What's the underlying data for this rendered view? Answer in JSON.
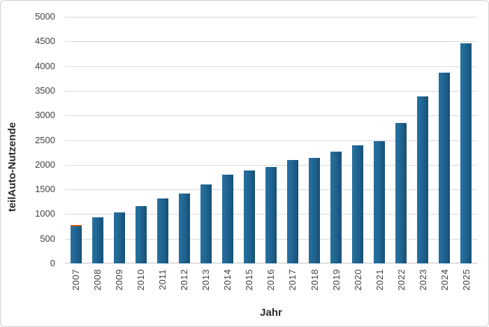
{
  "window": {
    "background": "#ffffff",
    "border_color": "#d2d2d2"
  },
  "chart_data": {
    "type": "bar",
    "title": "",
    "xlabel": "Jahr",
    "ylabel": "teilAuto-Nutzende",
    "categories": [
      "2007",
      "2008",
      "2009",
      "2010",
      "2011",
      "2012",
      "2013",
      "2014",
      "2015",
      "2016",
      "2017",
      "2018",
      "2019",
      "2020",
      "2021",
      "2022",
      "2023",
      "2024",
      "2025"
    ],
    "values": [
      780,
      930,
      1040,
      1160,
      1320,
      1410,
      1600,
      1800,
      1880,
      1950,
      2100,
      2140,
      2270,
      2400,
      2480,
      2850,
      3390,
      3860,
      4460
    ],
    "highlight_segment": {
      "category": "2007",
      "value": 30,
      "color": "#c55a11",
      "note": "thin orange cap drawn on top of the 2007 bar"
    },
    "ylim": [
      0,
      5000
    ],
    "ytick_step": 500,
    "yticks": [
      0,
      500,
      1000,
      1500,
      2000,
      2500,
      3000,
      3500,
      4000,
      4500,
      5000
    ],
    "grid": true,
    "legend": "none",
    "bar_color": "#1e6390",
    "gridline_color": "#d9d9d9",
    "axisline_color": "#c4c4c4",
    "tick_color": "#404040",
    "title_color": "#2b2b2b"
  }
}
